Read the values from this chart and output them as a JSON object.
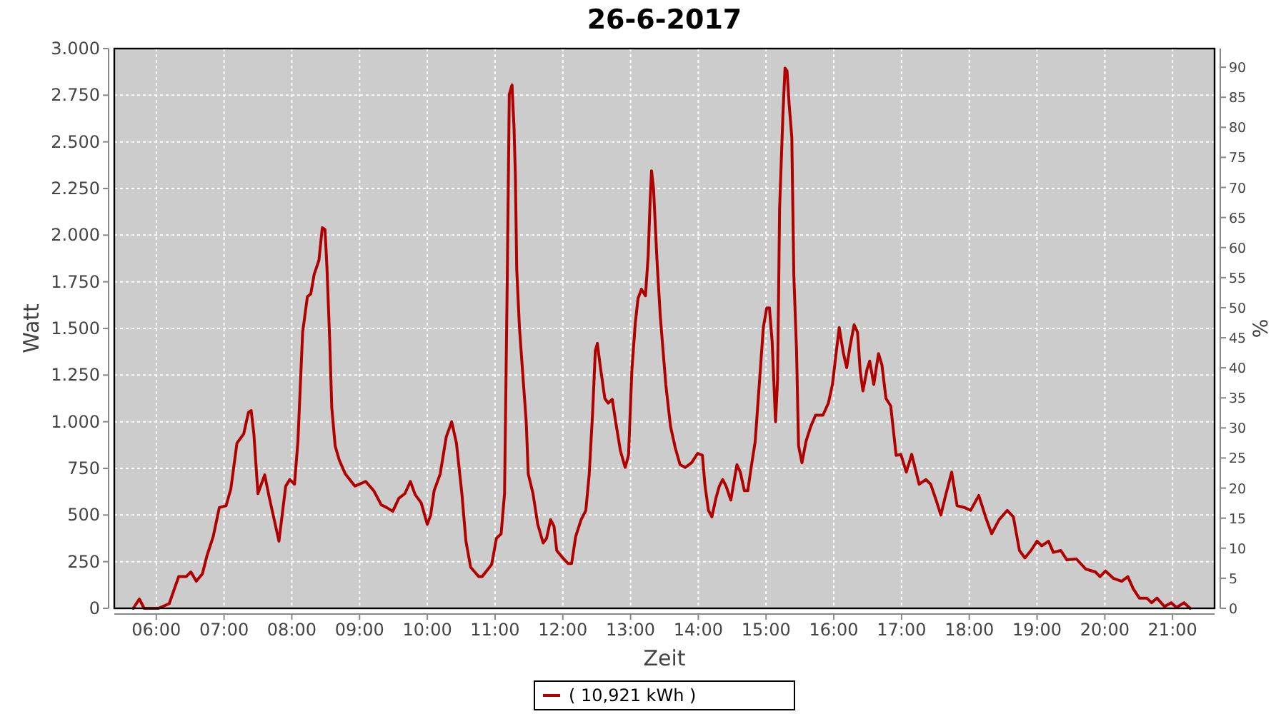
{
  "chart_data": {
    "type": "line",
    "title": "26-6-2017",
    "xlabel": "Zeit",
    "ylabel": "Watt",
    "y2label": "%",
    "xlim": [
      5.38,
      21.62
    ],
    "xticks": [
      {
        "value": 6,
        "label": "06:00"
      },
      {
        "value": 7,
        "label": "07:00"
      },
      {
        "value": 8,
        "label": "08:00"
      },
      {
        "value": 9,
        "label": "09:00"
      },
      {
        "value": 10,
        "label": "10:00"
      },
      {
        "value": 11,
        "label": "11:00"
      },
      {
        "value": 12,
        "label": "12:00"
      },
      {
        "value": 13,
        "label": "13:00"
      },
      {
        "value": 14,
        "label": "14:00"
      },
      {
        "value": 15,
        "label": "15:00"
      },
      {
        "value": 16,
        "label": "16:00"
      },
      {
        "value": 17,
        "label": "17:00"
      },
      {
        "value": 18,
        "label": "18:00"
      },
      {
        "value": 19,
        "label": "19:00"
      },
      {
        "value": 20,
        "label": "20:00"
      },
      {
        "value": 21,
        "label": "21:00"
      }
    ],
    "ylim": [
      0,
      3000
    ],
    "yticks": [
      0,
      250,
      500,
      750,
      {
        "value": 1000,
        "label": "1.000"
      },
      {
        "value": 1250,
        "label": "1.250"
      },
      {
        "value": 1500,
        "label": "1.500"
      },
      {
        "value": 1750,
        "label": "1.750"
      },
      {
        "value": 2000,
        "label": "2.000"
      },
      {
        "value": 2250,
        "label": "2.250"
      },
      {
        "value": 2500,
        "label": "2.500"
      },
      {
        "value": 2750,
        "label": "2.750"
      },
      {
        "value": 3000,
        "label": "3.000"
      }
    ],
    "y2lim": [
      0,
      93.1
    ],
    "y2ticks": [
      0,
      5,
      10,
      15,
      20,
      25,
      30,
      35,
      40,
      45,
      50,
      55,
      60,
      65,
      70,
      75,
      80,
      85,
      90
    ],
    "grid": true,
    "legend": "bottom",
    "line_style": "solid",
    "series": [
      {
        "name": "( 10,921 kWh )",
        "color": "#b00000",
        "x": [
          5.66,
          5.75,
          5.82,
          6.03,
          6.19,
          6.33,
          6.44,
          6.51,
          6.59,
          6.68,
          6.75,
          6.84,
          6.93,
          7.03,
          7.1,
          7.19,
          7.29,
          7.36,
          7.4,
          7.44,
          7.5,
          7.6,
          7.67,
          7.81,
          7.91,
          7.97,
          8.04,
          8.09,
          8.16,
          8.23,
          8.28,
          8.33,
          8.4,
          8.45,
          8.49,
          8.52,
          8.56,
          8.59,
          8.64,
          8.7,
          8.79,
          8.93,
          9.09,
          9.21,
          9.32,
          9.4,
          9.49,
          9.58,
          9.67,
          9.75,
          9.82,
          9.91,
          10,
          10.05,
          10.1,
          10.19,
          10.28,
          10.36,
          10.43,
          10.51,
          10.57,
          10.64,
          10.76,
          10.81,
          10.95,
          11.02,
          11.09,
          11.14,
          11.18,
          11.21,
          11.25,
          11.28,
          11.3,
          11.32,
          11.36,
          11.41,
          11.46,
          11.49,
          11.56,
          11.63,
          11.71,
          11.76,
          11.82,
          11.87,
          11.91,
          12,
          12.08,
          12.13,
          12.19,
          12.27,
          12.34,
          12.39,
          12.44,
          12.48,
          12.51,
          12.55,
          12.62,
          12.67,
          12.73,
          12.78,
          12.85,
          12.92,
          12.97,
          13.02,
          13.07,
          13.11,
          13.16,
          13.22,
          13.26,
          13.29,
          13.31,
          13.34,
          13.39,
          13.44,
          13.52,
          13.59,
          13.66,
          13.73,
          13.81,
          13.9,
          13.99,
          14.06,
          14.1,
          14.15,
          14.2,
          14.26,
          14.31,
          14.36,
          14.41,
          14.48,
          14.52,
          14.57,
          14.62,
          14.68,
          14.73,
          14.78,
          14.84,
          14.89,
          14.96,
          15.01,
          15.05,
          15.09,
          15.14,
          15.17,
          15.2,
          15.25,
          15.28,
          15.31,
          15.34,
          15.38,
          15.41,
          15.45,
          15.48,
          15.53,
          15.59,
          15.66,
          15.73,
          15.84,
          15.92,
          15.98,
          16.03,
          16.08,
          16.14,
          16.19,
          16.24,
          16.3,
          16.35,
          16.39,
          16.43,
          16.49,
          16.53,
          16.59,
          16.66,
          16.71,
          16.77,
          16.84,
          16.92,
          16.99,
          17.07,
          17.15,
          17.26,
          17.36,
          17.43,
          17.51,
          17.58,
          17.65,
          17.74,
          17.82,
          17.93,
          18.02,
          18.14,
          18.24,
          18.33,
          18.44,
          18.56,
          18.65,
          18.74,
          18.82,
          18.91,
          19,
          19.07,
          19.17,
          19.24,
          19.35,
          19.44,
          19.58,
          19.72,
          19.86,
          19.93,
          20.01,
          20.13,
          20.25,
          20.34,
          20.42,
          20.51,
          20.62,
          20.69,
          20.77,
          20.88,
          20.98,
          21.06,
          21.17,
          21.26
        ],
        "values": [
          0,
          50,
          0,
          0,
          25,
          170,
          170,
          195,
          145,
          185,
          285,
          385,
          540,
          550,
          640,
          885,
          935,
          1050,
          1060,
          935,
          615,
          715,
          590,
          360,
          655,
          690,
          665,
          895,
          1480,
          1670,
          1685,
          1790,
          1865,
          2040,
          2030,
          1815,
          1430,
          1075,
          870,
          795,
          720,
          655,
          680,
          630,
          555,
          540,
          520,
          590,
          615,
          680,
          610,
          565,
          450,
          500,
          630,
          720,
          920,
          1000,
          885,
          615,
          360,
          220,
          170,
          170,
          235,
          375,
          400,
          615,
          1760,
          2755,
          2805,
          2575,
          2320,
          1815,
          1505,
          1250,
          1000,
          720,
          615,
          450,
          350,
          375,
          475,
          440,
          310,
          270,
          240,
          240,
          385,
          475,
          525,
          720,
          1050,
          1380,
          1420,
          1305,
          1125,
          1100,
          1120,
          1000,
          845,
          755,
          820,
          1280,
          1530,
          1660,
          1710,
          1675,
          1890,
          2195,
          2345,
          2245,
          1865,
          1560,
          1200,
          975,
          860,
          770,
          755,
          780,
          830,
          820,
          655,
          525,
          490,
          590,
          655,
          690,
          655,
          580,
          665,
          770,
          730,
          630,
          630,
          755,
          895,
          1150,
          1505,
          1610,
          1610,
          1430,
          1000,
          1225,
          2145,
          2655,
          2895,
          2880,
          2705,
          2525,
          1785,
          1380,
          870,
          780,
          895,
          975,
          1035,
          1035,
          1100,
          1200,
          1355,
          1505,
          1370,
          1290,
          1405,
          1520,
          1480,
          1270,
          1165,
          1280,
          1325,
          1200,
          1365,
          1305,
          1125,
          1085,
          820,
          825,
          730,
          825,
          665,
          690,
          665,
          580,
          500,
          605,
          730,
          550,
          540,
          525,
          605,
          490,
          400,
          475,
          525,
          490,
          310,
          270,
          310,
          360,
          335,
          360,
          300,
          310,
          260,
          265,
          210,
          195,
          170,
          200,
          160,
          145,
          170,
          105,
          55,
          55,
          30,
          55,
          10,
          30,
          5,
          30,
          0
        ]
      }
    ]
  }
}
